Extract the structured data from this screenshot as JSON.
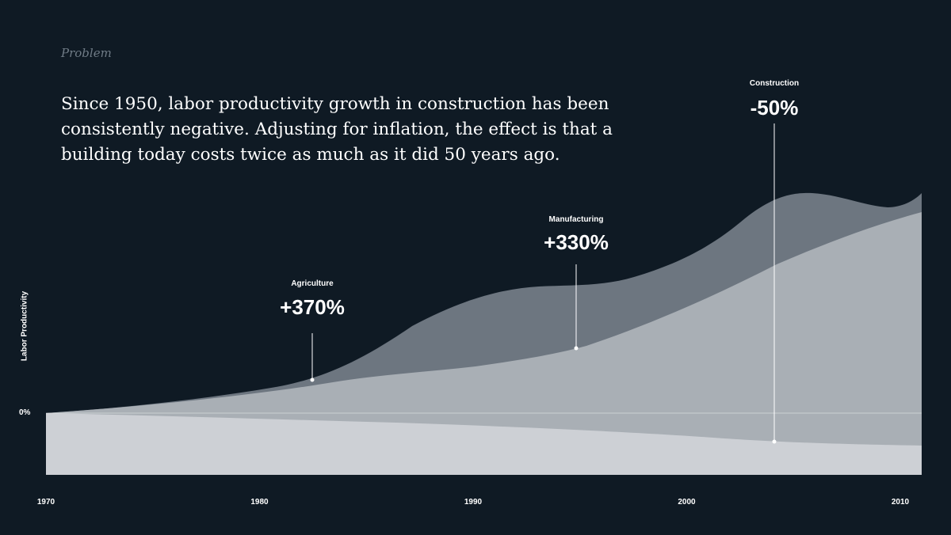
{
  "page": {
    "section_label": "Problem",
    "headline": "Since 1950, labor productivity growth in construction has been consistently negative. Adjusting for inflation, the effect is that a building today costs twice as much as it did 50 years ago."
  },
  "chart_data": {
    "type": "area",
    "ylabel": "Labor Productivity",
    "y_zero_label": "0%",
    "x_ticks": [
      "1970",
      "1980",
      "1990",
      "2000",
      "2010"
    ],
    "xlim": [
      1970,
      2011
    ],
    "colors": {
      "background": "#0f1a24",
      "outer_band": "#6d7680",
      "middle_band": "#a9afb5",
      "lower_band": "#cdd0d5",
      "zero_line": "#ffffff"
    },
    "annotations": [
      {
        "name": "Agriculture",
        "value": "+370%"
      },
      {
        "name": "Manufacturing",
        "value": "+330%"
      },
      {
        "name": "Construction",
        "value": "-50%"
      }
    ]
  }
}
